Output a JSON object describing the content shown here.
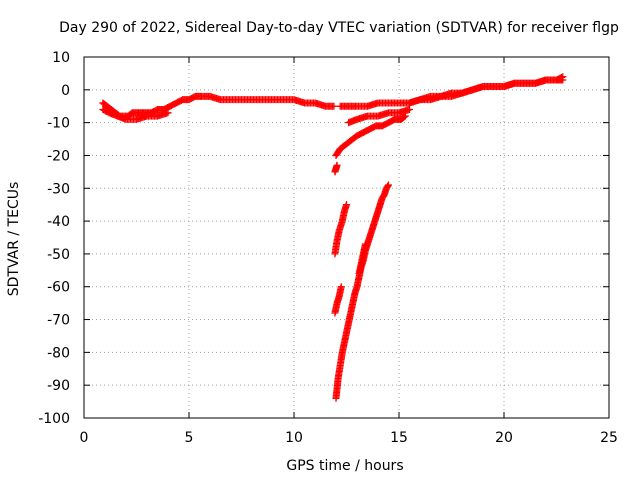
{
  "chart_data": {
    "type": "scatter",
    "title": "Day 290 of 2022, Sidereal Day-to-day VTEC variation (SDTVAR) for receiver flgp",
    "xlabel": "GPS time / hours",
    "ylabel": "SDTVAR / TECUs",
    "xlim": [
      0,
      25
    ],
    "ylim": [
      -100,
      10
    ],
    "x_ticks": [
      "0",
      "5",
      "10",
      "15",
      "20",
      "25"
    ],
    "y_ticks": [
      "10",
      "0",
      "-10",
      "-20",
      "-30",
      "-40",
      "-50",
      "-60",
      "-70",
      "-80",
      "-90",
      "-100"
    ],
    "x_tick_values": [
      0,
      5,
      10,
      15,
      20,
      25
    ],
    "y_tick_values": [
      10,
      0,
      -10,
      -20,
      -30,
      -40,
      -50,
      -60,
      -70,
      -80,
      -90,
      -100
    ],
    "grid": true,
    "marker": "plus",
    "color": "#ff0000",
    "series": [
      {
        "x": [
          0.9,
          1.1,
          1.3,
          1.5,
          1.7,
          1.9,
          2.1,
          2.3,
          2.6,
          2.9,
          3.2,
          3.5,
          3.8,
          4.1,
          4.4,
          4.7,
          5.0,
          5.3,
          5.6,
          6.0,
          6.5,
          7.0,
          7.5,
          8.0,
          8.5,
          9.0,
          9.5,
          10.0,
          10.5,
          11.0,
          11.5,
          11.9
        ],
        "y": [
          -4,
          -5,
          -6,
          -7,
          -8,
          -8,
          -8,
          -7,
          -7,
          -7,
          -7,
          -6,
          -6,
          -5,
          -4,
          -3,
          -3,
          -2,
          -2,
          -2,
          -3,
          -3,
          -3,
          -3,
          -3,
          -3,
          -3,
          -3,
          -4,
          -4,
          -5,
          -5
        ]
      },
      {
        "x": [
          0.9,
          1.2,
          1.6,
          2.0,
          2.5,
          3.0,
          3.5,
          4.0
        ],
        "y": [
          -6,
          -7,
          -8,
          -9,
          -9,
          -8,
          -8,
          -7
        ]
      },
      {
        "x": [
          12.2,
          12.6,
          13.0,
          13.5,
          14.0,
          14.5,
          15.0,
          15.5,
          16.0,
          16.5,
          17.0,
          17.5,
          18.0,
          18.5,
          19.0,
          19.5,
          20.0,
          20.5,
          21.0,
          21.5,
          22.0,
          22.5,
          22.8
        ],
        "y": [
          -5,
          -5,
          -5,
          -5,
          -4,
          -4,
          -4,
          -4,
          -3,
          -3,
          -2,
          -2,
          -1,
          0,
          1,
          1,
          1,
          2,
          2,
          2,
          3,
          3,
          4
        ]
      },
      {
        "x": [
          15.5,
          16.0,
          16.5,
          17.0,
          17.5,
          18.0,
          18.5,
          19.0,
          19.5,
          20.0,
          20.5,
          21.0,
          21.5,
          22.0,
          22.5,
          22.8
        ],
        "y": [
          -4,
          -3,
          -2,
          -2,
          -1,
          -1,
          0,
          1,
          1,
          1,
          2,
          2,
          2,
          3,
          3,
          3
        ]
      },
      {
        "x": [
          12.6,
          13.0,
          13.5,
          14.0,
          14.5,
          15.0,
          15.5
        ],
        "y": [
          -10,
          -9,
          -8,
          -8,
          -7,
          -7,
          -6
        ]
      },
      {
        "x": [
          12.0,
          12.2,
          12.4,
          12.6,
          12.8,
          13.0,
          13.3,
          13.6,
          13.9,
          14.2,
          14.5,
          14.8,
          15.1,
          15.3
        ],
        "y": [
          -20,
          -18,
          -17,
          -16,
          -15,
          -14,
          -13,
          -12,
          -11,
          -11,
          -10,
          -9,
          -9,
          -8
        ]
      },
      {
        "x": [
          11.95,
          12.0,
          12.05
        ],
        "y": [
          -25,
          -24,
          -23
        ]
      },
      {
        "x": [
          11.95,
          12.05,
          12.15,
          12.3,
          12.4,
          12.5
        ],
        "y": [
          -50,
          -46,
          -43,
          -40,
          -37,
          -35
        ]
      },
      {
        "x": [
          11.95,
          12.05,
          12.15,
          12.25
        ],
        "y": [
          -68,
          -65,
          -63,
          -60
        ]
      },
      {
        "x": [
          12.0,
          12.1,
          12.2,
          12.3,
          12.4,
          12.5,
          12.6,
          12.7,
          12.8,
          12.9,
          13.0,
          13.1,
          13.2,
          13.3,
          13.4,
          13.5,
          13.6,
          13.7,
          13.8,
          13.9,
          14.0,
          14.1,
          14.2,
          14.3,
          14.4,
          14.5
        ],
        "y": [
          -94,
          -88,
          -84,
          -80,
          -77,
          -74,
          -71,
          -68,
          -65,
          -62,
          -60,
          -57,
          -54,
          -52,
          -49,
          -47,
          -45,
          -43,
          -41,
          -39,
          -37,
          -35,
          -33,
          -32,
          -30,
          -29
        ]
      },
      {
        "x": [
          13.1,
          13.2,
          13.3,
          13.4
        ],
        "y": [
          -56,
          -53,
          -50,
          -47
        ]
      }
    ]
  }
}
